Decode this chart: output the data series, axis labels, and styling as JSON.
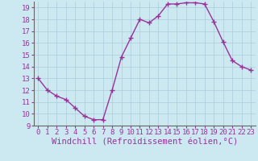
{
  "x": [
    0,
    1,
    2,
    3,
    4,
    5,
    6,
    7,
    8,
    9,
    10,
    11,
    12,
    13,
    14,
    15,
    16,
    17,
    18,
    19,
    20,
    21,
    22,
    23
  ],
  "y": [
    13,
    12,
    11.5,
    11.2,
    10.5,
    9.8,
    9.5,
    9.5,
    12,
    14.8,
    16.4,
    18.0,
    17.7,
    18.3,
    19.3,
    19.3,
    19.4,
    19.4,
    19.3,
    17.8,
    16.1,
    14.5,
    14.0,
    13.7
  ],
  "line_color": "#993399",
  "marker": "+",
  "marker_size": 4,
  "bg_color": "#cce8f0",
  "grid_color": "#aaccdd",
  "xlabel": "Windchill (Refroidissement éolien,°C)",
  "xlabel_color": "#993399",
  "tick_color": "#993399",
  "ylim": [
    9,
    19.5
  ],
  "xlim": [
    -0.5,
    23.5
  ],
  "yticks": [
    9,
    10,
    11,
    12,
    13,
    14,
    15,
    16,
    17,
    18,
    19
  ],
  "xticks": [
    0,
    1,
    2,
    3,
    4,
    5,
    6,
    7,
    8,
    9,
    10,
    11,
    12,
    13,
    14,
    15,
    16,
    17,
    18,
    19,
    20,
    21,
    22,
    23
  ],
  "tick_fontsize": 6.5,
  "xlabel_fontsize": 7.5,
  "spine_color": "#666666",
  "linewidth": 1.0,
  "marker_linewidth": 1.0
}
